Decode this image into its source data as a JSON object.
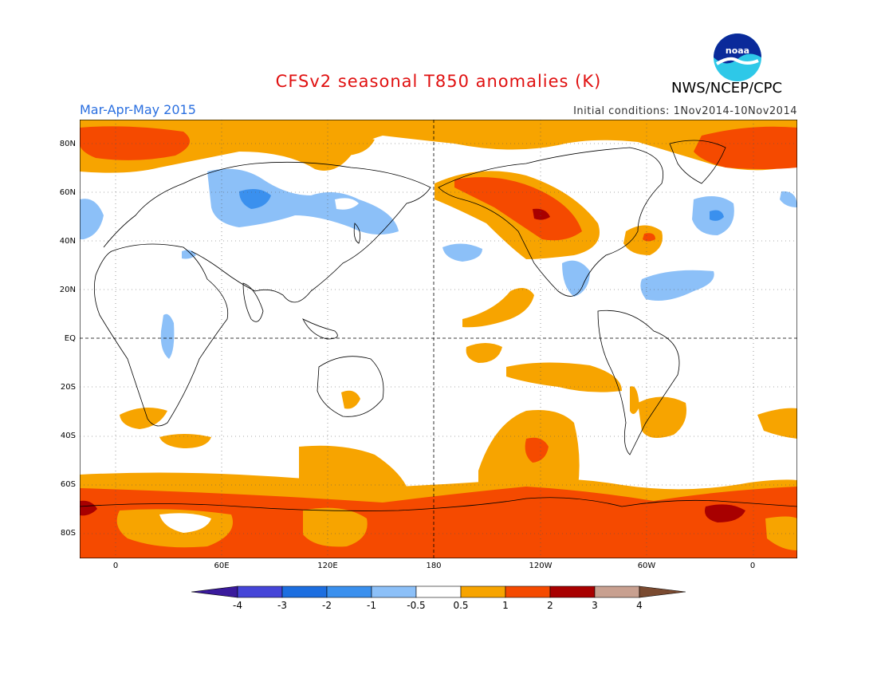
{
  "title": "CFSv2 seasonal T850 anomalies (K)",
  "season": "Mar-Apr-May 2015",
  "initial_conditions": "Initial conditions: 1Nov2014-10Nov2014",
  "agency": "NWS/NCEP/CPC",
  "logo_icon": "noaa-logo-icon",
  "map": {
    "lat_labels": [
      "80N",
      "60N",
      "40N",
      "20N",
      "EQ",
      "20S",
      "40S",
      "60S",
      "80S"
    ],
    "lon_labels": [
      "0",
      "60E",
      "120E",
      "180",
      "120W",
      "60W",
      "0"
    ]
  },
  "colorbar": {
    "levels": [
      "-4",
      "-3",
      "-2",
      "-1",
      "-0.5",
      "0.5",
      "1",
      "2",
      "3",
      "4"
    ],
    "colors": [
      "#3a1a9c",
      "#4545d8",
      "#1c6ee0",
      "#3a90ee",
      "#8cc0f8",
      "#ffffff",
      "#f7a400",
      "#f54a00",
      "#a80000",
      "#c8a090",
      "#7a4a30"
    ]
  },
  "palette": {
    "orange": "#f7a400",
    "red": "#f54a00",
    "darkred": "#a80000",
    "lightblue": "#8cc0f8",
    "blue": "#3a90ee"
  }
}
